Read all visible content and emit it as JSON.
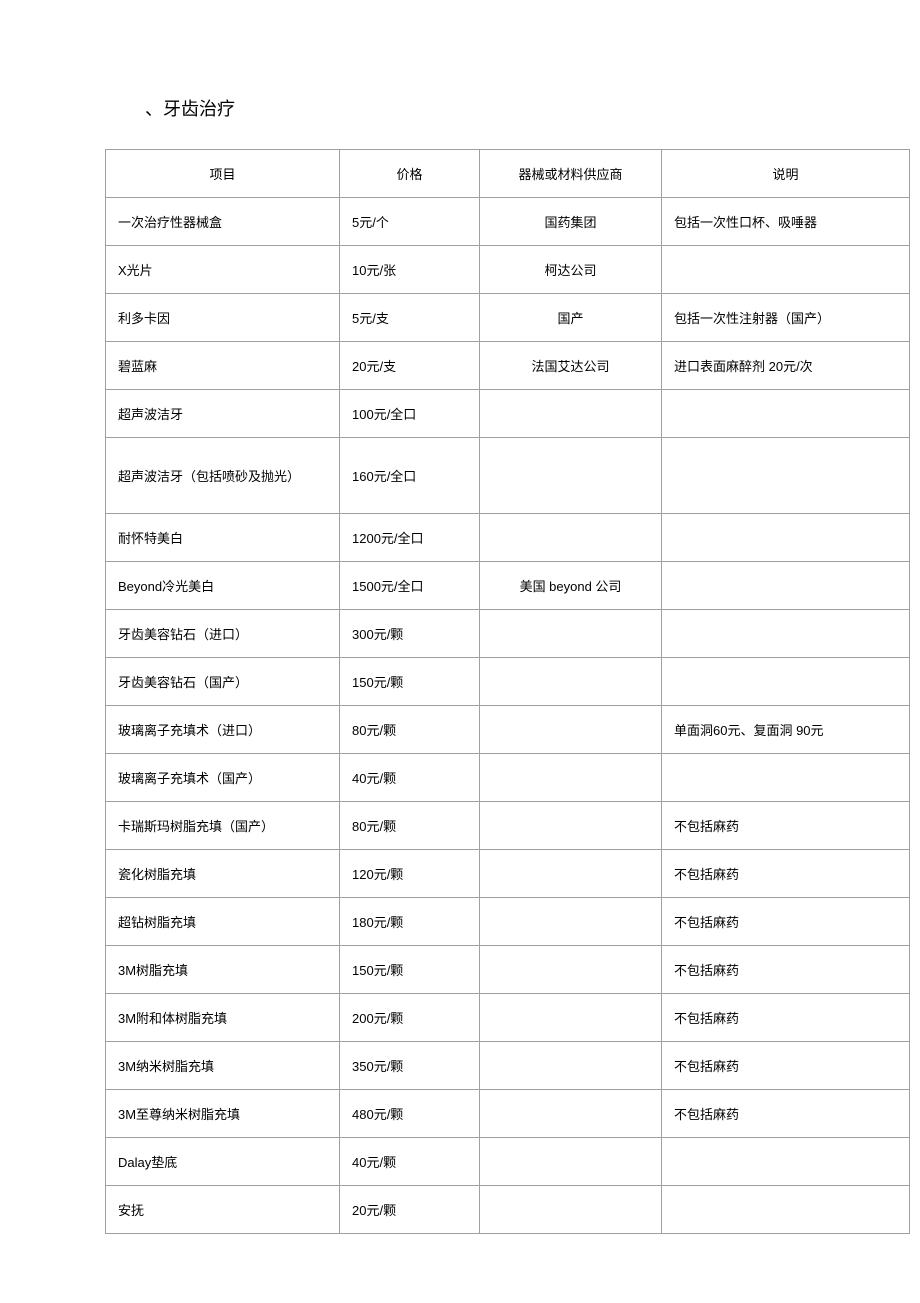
{
  "title": "、牙齿治疗",
  "table": {
    "headers": {
      "item": "项目",
      "price": "价格",
      "supplier": "器械或材料供应商",
      "note": "说明"
    },
    "rows": [
      {
        "item": "一次治疗性器械盒",
        "price": "5元/个",
        "supplier": "国药集团",
        "note": "包括一次性口杯、吸唾器",
        "tall": false
      },
      {
        "item": "X光片",
        "price": "10元/张",
        "supplier": "柯达公司",
        "note": "",
        "tall": false
      },
      {
        "item": "利多卡因",
        "price": "5元/支",
        "supplier": "国产",
        "note": "包括一次性注射器（国产）",
        "tall": false
      },
      {
        "item": "碧蓝麻",
        "price": "20元/支",
        "supplier": "法国艾达公司",
        "note": "进口表面麻醉剂  20元/次",
        "tall": false
      },
      {
        "item": "超声波洁牙",
        "price": "100元/全口",
        "supplier": "",
        "note": "",
        "tall": false
      },
      {
        "item": "超声波洁牙（包括喷砂及抛光）",
        "price": "160元/全口",
        "supplier": "",
        "note": "",
        "tall": true
      },
      {
        "item": "耐怀特美白",
        "price": "1200元/全口",
        "supplier": "",
        "note": "",
        "tall": false
      },
      {
        "item": "Beyond冷光美白",
        "price": "1500元/全口",
        "supplier": "美国  beyond 公司",
        "note": "",
        "tall": false
      },
      {
        "item": "牙齿美容钻石（进口）",
        "price": "300元/颗",
        "supplier": "",
        "note": "",
        "tall": false
      },
      {
        "item": "牙齿美容钻石（国产）",
        "price": "150元/颗",
        "supplier": "",
        "note": "",
        "tall": false
      },
      {
        "item": "玻璃离子充填术（进口）",
        "price": "80元/颗",
        "supplier": "",
        "note": "单面洞60元、复面洞  90元",
        "tall": false
      },
      {
        "item": "玻璃离子充填术（国产）",
        "price": "40元/颗",
        "supplier": "",
        "note": "",
        "tall": false
      },
      {
        "item": "卡瑞斯玛树脂充填（国产）",
        "price": "80元/颗",
        "supplier": "",
        "note": "不包括麻药",
        "tall": false
      },
      {
        "item": "瓷化树脂充填",
        "price": "120元/颗",
        "supplier": "",
        "note": "不包括麻药",
        "tall": false
      },
      {
        "item": "超钻树脂充填",
        "price": "180元/颗",
        "supplier": "",
        "note": "不包括麻药",
        "tall": false
      },
      {
        "item": "3M树脂充填",
        "price": "150元/颗",
        "supplier": "",
        "note": "不包括麻药",
        "tall": false
      },
      {
        "item": "3M附和体树脂充填",
        "price": "200元/颗",
        "supplier": "",
        "note": "不包括麻药",
        "tall": false
      },
      {
        "item": "3M纳米树脂充填",
        "price": "350元/颗",
        "supplier": "",
        "note": "不包括麻药",
        "tall": false
      },
      {
        "item": "3M至尊纳米树脂充填",
        "price": "480元/颗",
        "supplier": "",
        "note": "不包括麻药",
        "tall": false
      },
      {
        "item": "Dalay垫底",
        "price": "40元/颗",
        "supplier": "",
        "note": "",
        "tall": false
      },
      {
        "item": "安抚",
        "price": "20元/颗",
        "supplier": "",
        "note": "",
        "tall": false
      }
    ]
  }
}
